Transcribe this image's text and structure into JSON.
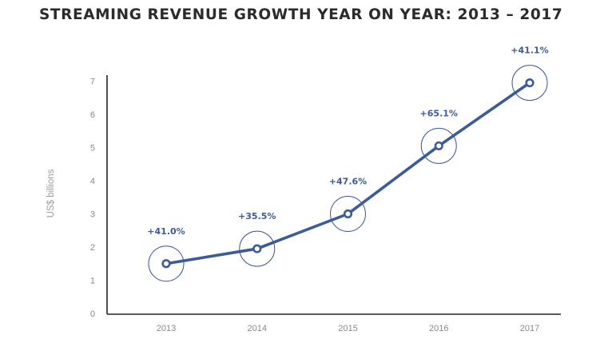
{
  "chart_data": {
    "type": "line",
    "title": "STREAMING REVENUE GROWTH YEAR ON YEAR: 2013 – 2017",
    "xlabel": "",
    "ylabel": "US$ billions",
    "categories": [
      "2013",
      "2014",
      "2015",
      "2016",
      "2017"
    ],
    "y_ticks": [
      "0",
      "1",
      "2",
      "3",
      "4",
      "5",
      "6",
      "7"
    ],
    "ylim": [
      0,
      7
    ],
    "grid": false,
    "series": [
      {
        "values": [
          1.5,
          1.95,
          3.0,
          5.05,
          6.95
        ],
        "data_labels": [
          "+41.0%",
          "+35.5%",
          "+47.6%",
          "+65.1%",
          "+41.1%"
        ]
      }
    ],
    "colors": {
      "line": "#3d5a99",
      "label": "#3d5a99",
      "axis": "#222222"
    }
  }
}
